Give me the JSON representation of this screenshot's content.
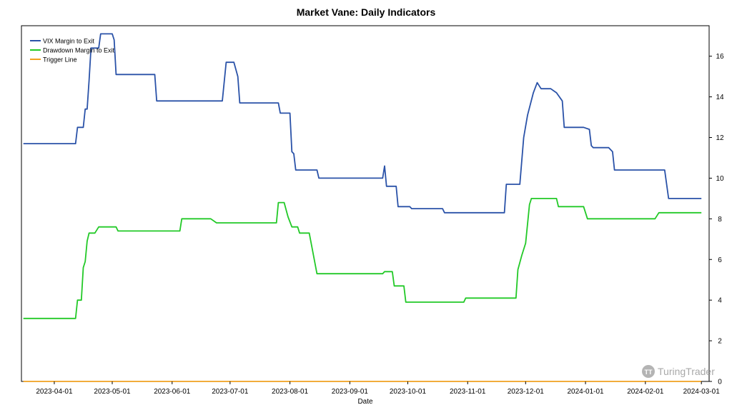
{
  "chart_data": {
    "type": "line",
    "title": "Market Vane: Daily Indicators",
    "xlabel": "Date",
    "ylabel": "",
    "x_range": [
      "2023-03-15",
      "2024-03-05"
    ],
    "ylim": [
      0,
      17.5
    ],
    "y_axis_side": "right",
    "x_ticks": [
      "2023-04-01",
      "2023-05-01",
      "2023-06-01",
      "2023-07-01",
      "2023-08-01",
      "2023-09-01",
      "2023-10-01",
      "2023-11-01",
      "2023-12-01",
      "2024-01-01",
      "2024-02-01",
      "2024-03-01"
    ],
    "y_ticks": [
      0,
      2,
      4,
      6,
      8,
      10,
      12,
      14,
      16
    ],
    "grid": false,
    "legend_position": "top-left",
    "series": [
      {
        "name": "VIX Margin to Exit",
        "color": "#2a52a8",
        "points": [
          [
            "2023-03-16",
            11.7
          ],
          [
            "2023-04-12",
            11.7
          ],
          [
            "2023-04-13",
            12.5
          ],
          [
            "2023-04-16",
            12.5
          ],
          [
            "2023-04-17",
            13.4
          ],
          [
            "2023-04-18",
            13.4
          ],
          [
            "2023-04-19",
            14.8
          ],
          [
            "2023-04-20",
            16.4
          ],
          [
            "2023-04-24",
            16.4
          ],
          [
            "2023-04-25",
            17.1
          ],
          [
            "2023-05-01",
            17.1
          ],
          [
            "2023-05-02",
            16.8
          ],
          [
            "2023-05-03",
            15.1
          ],
          [
            "2023-05-23",
            15.1
          ],
          [
            "2023-05-24",
            13.8
          ],
          [
            "2023-06-27",
            13.8
          ],
          [
            "2023-06-29",
            15.7
          ],
          [
            "2023-07-03",
            15.7
          ],
          [
            "2023-07-05",
            15.0
          ],
          [
            "2023-07-06",
            13.7
          ],
          [
            "2023-07-26",
            13.7
          ],
          [
            "2023-07-27",
            13.2
          ],
          [
            "2023-08-01",
            13.2
          ],
          [
            "2023-08-02",
            11.3
          ],
          [
            "2023-08-03",
            11.2
          ],
          [
            "2023-08-04",
            10.4
          ],
          [
            "2023-08-15",
            10.4
          ],
          [
            "2023-08-16",
            10.0
          ],
          [
            "2023-09-18",
            10.0
          ],
          [
            "2023-09-19",
            10.6
          ],
          [
            "2023-09-20",
            9.6
          ],
          [
            "2023-09-25",
            9.6
          ],
          [
            "2023-09-26",
            8.6
          ],
          [
            "2023-10-02",
            8.6
          ],
          [
            "2023-10-03",
            8.5
          ],
          [
            "2023-10-19",
            8.5
          ],
          [
            "2023-10-20",
            8.3
          ],
          [
            "2023-11-20",
            8.3
          ],
          [
            "2023-11-21",
            9.7
          ],
          [
            "2023-11-28",
            9.7
          ],
          [
            "2023-11-30",
            12.0
          ],
          [
            "2023-12-02",
            13.1
          ],
          [
            "2023-12-05",
            14.2
          ],
          [
            "2023-12-07",
            14.7
          ],
          [
            "2023-12-09",
            14.4
          ],
          [
            "2023-12-14",
            14.4
          ],
          [
            "2023-12-17",
            14.2
          ],
          [
            "2023-12-20",
            13.8
          ],
          [
            "2023-12-21",
            12.5
          ],
          [
            "2023-12-31",
            12.5
          ],
          [
            "2024-01-03",
            12.4
          ],
          [
            "2024-01-04",
            11.6
          ],
          [
            "2024-01-05",
            11.5
          ],
          [
            "2024-01-13",
            11.5
          ],
          [
            "2024-01-15",
            11.3
          ],
          [
            "2024-01-16",
            10.4
          ],
          [
            "2024-02-11",
            10.4
          ],
          [
            "2024-02-13",
            9.0
          ],
          [
            "2024-03-01",
            9.0
          ]
        ]
      },
      {
        "name": "Drawdown Margin to Exit",
        "color": "#22c927",
        "points": [
          [
            "2023-03-16",
            3.1
          ],
          [
            "2023-04-12",
            3.1
          ],
          [
            "2023-04-13",
            4.0
          ],
          [
            "2023-04-15",
            4.0
          ],
          [
            "2023-04-16",
            5.6
          ],
          [
            "2023-04-17",
            5.9
          ],
          [
            "2023-04-18",
            6.9
          ],
          [
            "2023-04-19",
            7.3
          ],
          [
            "2023-04-22",
            7.3
          ],
          [
            "2023-04-24",
            7.6
          ],
          [
            "2023-05-03",
            7.6
          ],
          [
            "2023-05-04",
            7.4
          ],
          [
            "2023-06-05",
            7.4
          ],
          [
            "2023-06-06",
            8.0
          ],
          [
            "2023-06-21",
            8.0
          ],
          [
            "2023-06-24",
            7.8
          ],
          [
            "2023-07-25",
            7.8
          ],
          [
            "2023-07-26",
            8.8
          ],
          [
            "2023-07-29",
            8.8
          ],
          [
            "2023-07-31",
            8.1
          ],
          [
            "2023-08-02",
            7.6
          ],
          [
            "2023-08-05",
            7.6
          ],
          [
            "2023-08-06",
            7.3
          ],
          [
            "2023-08-11",
            7.3
          ],
          [
            "2023-08-15",
            5.3
          ],
          [
            "2023-09-18",
            5.3
          ],
          [
            "2023-09-19",
            5.4
          ],
          [
            "2023-09-23",
            5.4
          ],
          [
            "2023-09-24",
            4.7
          ],
          [
            "2023-09-29",
            4.7
          ],
          [
            "2023-09-30",
            3.9
          ],
          [
            "2023-10-30",
            3.9
          ],
          [
            "2023-10-31",
            4.1
          ],
          [
            "2023-11-26",
            4.1
          ],
          [
            "2023-11-27",
            5.5
          ],
          [
            "2023-11-29",
            6.2
          ],
          [
            "2023-12-01",
            6.8
          ],
          [
            "2023-12-03",
            8.7
          ],
          [
            "2023-12-04",
            9.0
          ],
          [
            "2023-12-17",
            9.0
          ],
          [
            "2023-12-18",
            8.6
          ],
          [
            "2023-12-31",
            8.6
          ],
          [
            "2024-01-02",
            8.0
          ],
          [
            "2024-02-06",
            8.0
          ],
          [
            "2024-02-08",
            8.3
          ],
          [
            "2024-03-01",
            8.3
          ]
        ]
      },
      {
        "name": "Trigger Line",
        "color": "#f0a020",
        "points": [
          [
            "2023-03-16",
            0.0
          ],
          [
            "2024-03-01",
            0.0
          ]
        ]
      }
    ]
  },
  "watermark": {
    "text": "TuringTrader",
    "logo_text": "TT"
  }
}
